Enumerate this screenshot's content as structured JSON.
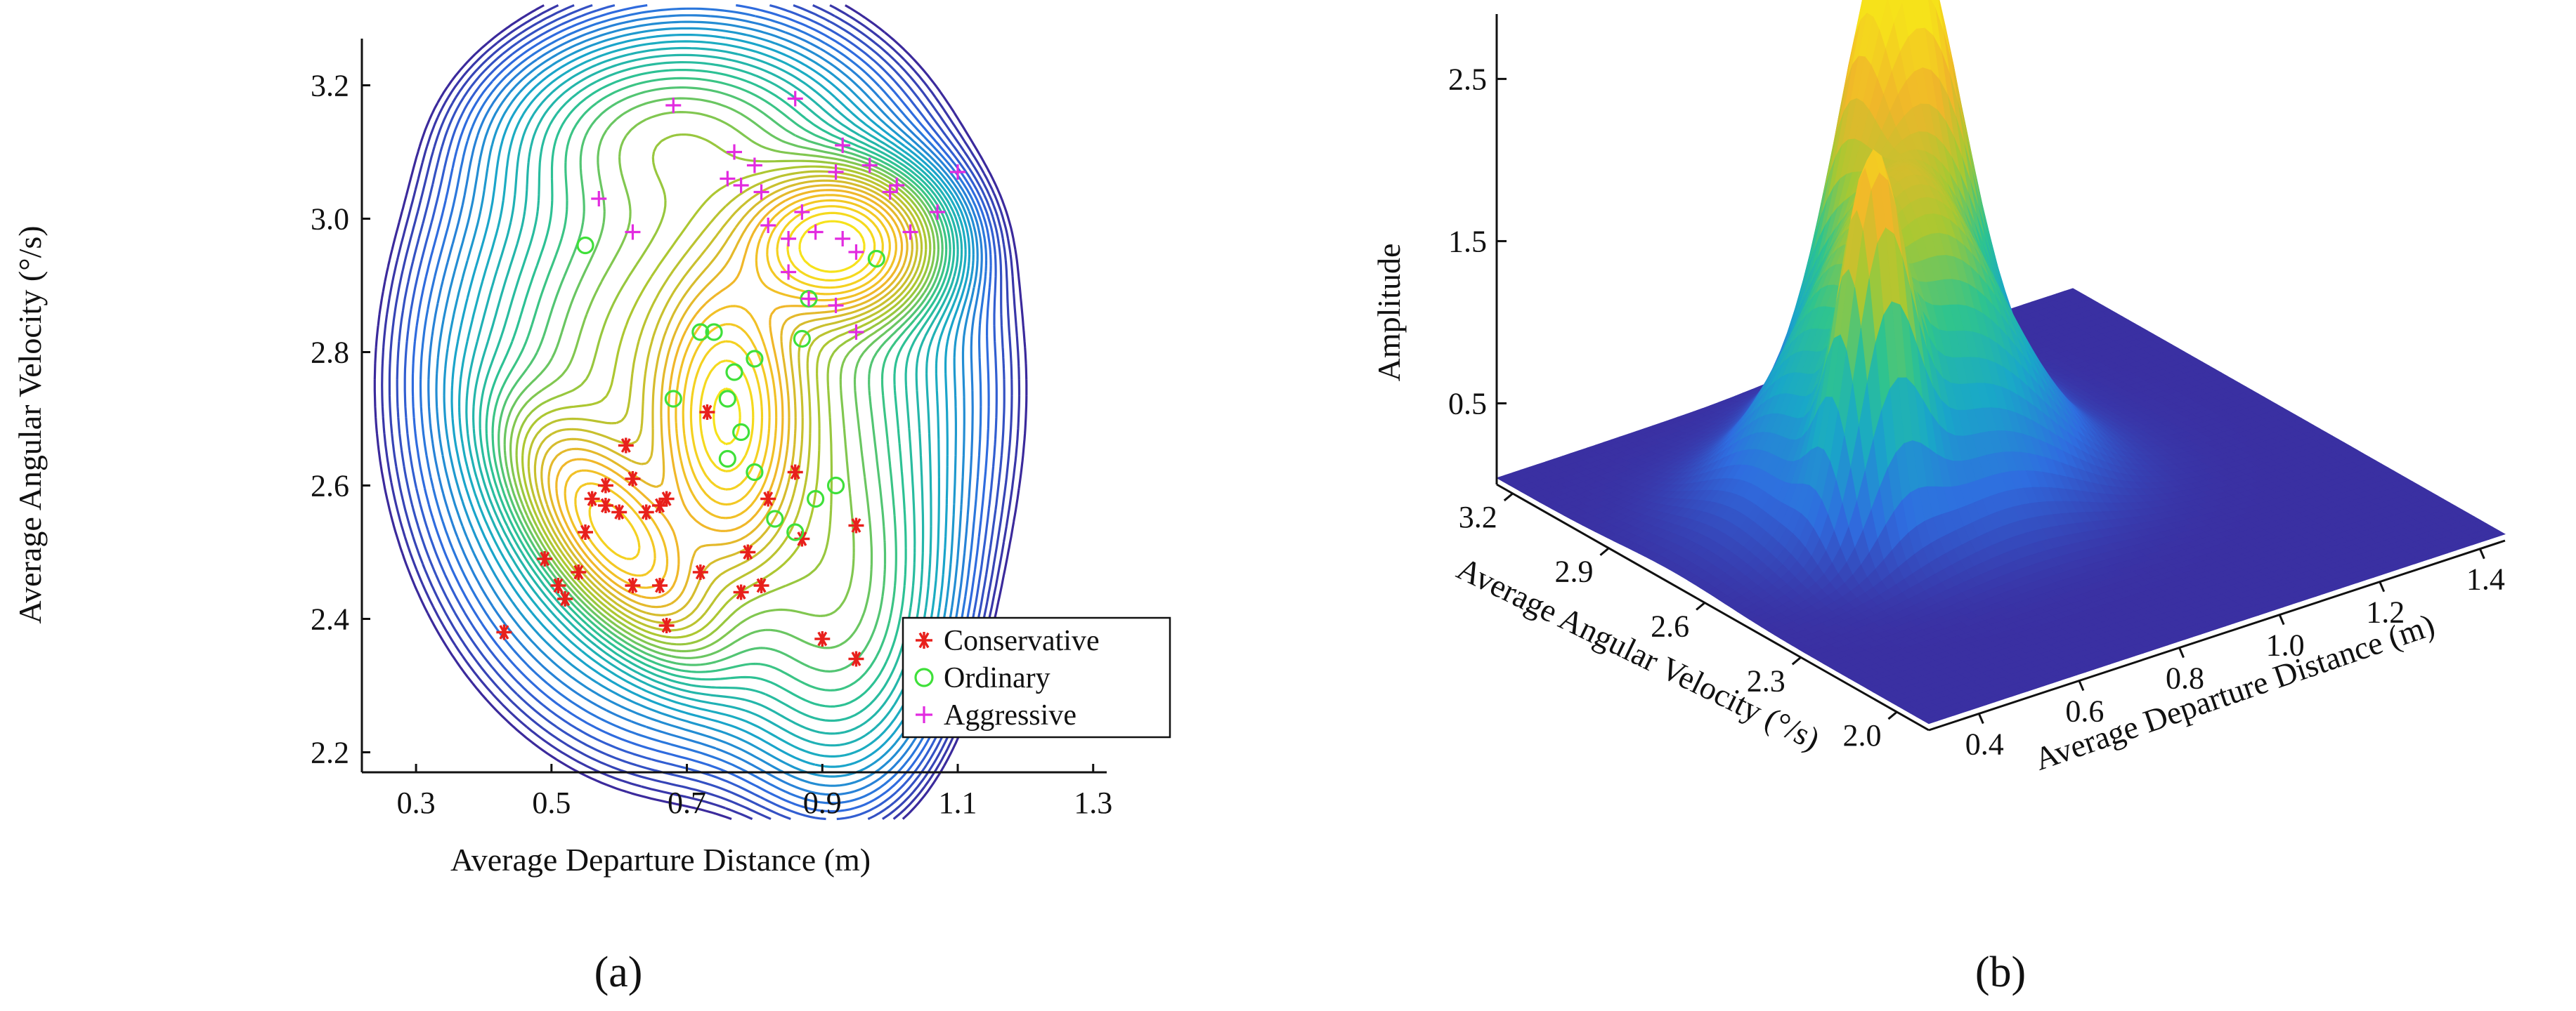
{
  "chart_data": [
    {
      "panel": "(a)",
      "type": "contour",
      "xlabel": "Average  Departure Distance (m)",
      "ylabel": "Average Angular Velocity (°/s)",
      "xlim": [
        0.22,
        1.32
      ],
      "ylim": [
        2.17,
        3.27
      ],
      "xticks": [
        "0.3",
        "0.5",
        "0.7",
        "0.9",
        "1.1",
        "1.3"
      ],
      "yticks": [
        "2.2",
        "2.4",
        "2.6",
        "2.8",
        "3.0",
        "3.2"
      ],
      "legend_position": "bottom-right",
      "density_peaks": [
        {
          "x": 0.59,
          "y": 2.53,
          "height": 1.8
        },
        {
          "x": 0.92,
          "y": 2.96,
          "height": 2.85
        },
        {
          "x": 0.76,
          "y": 2.7,
          "height": 2.0
        }
      ],
      "series": [
        {
          "name": "Conservative",
          "marker": "asterisk",
          "color": "#e8201c",
          "points": [
            [
              0.43,
              2.38
            ],
            [
              0.49,
              2.49
            ],
            [
              0.51,
              2.45
            ],
            [
              0.52,
              2.43
            ],
            [
              0.54,
              2.47
            ],
            [
              0.55,
              2.53
            ],
            [
              0.56,
              2.58
            ],
            [
              0.58,
              2.6
            ],
            [
              0.58,
              2.57
            ],
            [
              0.6,
              2.56
            ],
            [
              0.61,
              2.66
            ],
            [
              0.62,
              2.61
            ],
            [
              0.62,
              2.45
            ],
            [
              0.64,
              2.56
            ],
            [
              0.66,
              2.57
            ],
            [
              0.67,
              2.58
            ],
            [
              0.66,
              2.45
            ],
            [
              0.67,
              2.39
            ],
            [
              0.72,
              2.47
            ],
            [
              0.73,
              2.71
            ],
            [
              0.78,
              2.44
            ],
            [
              0.79,
              2.5
            ],
            [
              0.81,
              2.45
            ],
            [
              0.82,
              2.58
            ],
            [
              0.86,
              2.62
            ],
            [
              0.87,
              2.52
            ],
            [
              0.9,
              2.37
            ],
            [
              0.95,
              2.54
            ],
            [
              0.95,
              2.34
            ]
          ]
        },
        {
          "name": "Ordinary",
          "marker": "circle",
          "color": "#3fe03a",
          "points": [
            [
              0.55,
              2.96
            ],
            [
              0.68,
              2.73
            ],
            [
              0.72,
              2.83
            ],
            [
              0.74,
              2.83
            ],
            [
              0.76,
              2.73
            ],
            [
              0.77,
              2.77
            ],
            [
              0.78,
              2.68
            ],
            [
              0.8,
              2.79
            ],
            [
              0.76,
              2.64
            ],
            [
              0.8,
              2.62
            ],
            [
              0.83,
              2.55
            ],
            [
              0.86,
              2.53
            ],
            [
              0.87,
              2.82
            ],
            [
              0.89,
              2.58
            ],
            [
              0.92,
              2.6
            ],
            [
              0.98,
              2.94
            ],
            [
              0.88,
              2.88
            ]
          ]
        },
        {
          "name": "Aggressive",
          "marker": "plus",
          "color": "#e22be0",
          "points": [
            [
              0.57,
              3.03
            ],
            [
              0.62,
              2.98
            ],
            [
              0.68,
              3.17
            ],
            [
              0.76,
              3.06
            ],
            [
              0.77,
              3.1
            ],
            [
              0.78,
              3.05
            ],
            [
              0.8,
              3.08
            ],
            [
              0.81,
              3.04
            ],
            [
              0.82,
              2.99
            ],
            [
              0.85,
              2.97
            ],
            [
              0.86,
              3.18
            ],
            [
              0.87,
              3.01
            ],
            [
              0.89,
              2.98
            ],
            [
              0.92,
              3.07
            ],
            [
              0.93,
              3.11
            ],
            [
              0.93,
              2.97
            ],
            [
              0.95,
              2.95
            ],
            [
              0.97,
              3.08
            ],
            [
              1.0,
              3.04
            ],
            [
              1.01,
              3.05
            ],
            [
              1.07,
              3.01
            ],
            [
              1.1,
              3.07
            ],
            [
              1.03,
              2.98
            ],
            [
              0.95,
              2.83
            ],
            [
              0.88,
              2.88
            ],
            [
              0.92,
              2.87
            ],
            [
              0.85,
              2.92
            ]
          ]
        }
      ]
    },
    {
      "panel": "(b)",
      "type": "surface",
      "xlabel": "Average  Departure Distance (m)",
      "ylabel": "Average Angular Velocity (°/s)",
      "zlabel": "Amplitude",
      "xticks": [
        "0.4",
        "0.6",
        "0.8",
        "1.0",
        "1.2",
        "1.4"
      ],
      "yticks": [
        "2.0",
        "2.3",
        "2.6",
        "2.9",
        "3.2"
      ],
      "zticks": [
        "0.5",
        "1.5",
        "2.5"
      ],
      "xlim": [
        0.3,
        1.45
      ],
      "ylim": [
        1.9,
        3.25
      ],
      "zlim": [
        0,
        2.9
      ],
      "colormap": [
        "#3b2a9c",
        "#2f6de0",
        "#19a8c8",
        "#2fc48e",
        "#a8c832",
        "#f0b62a",
        "#f6e21a"
      ],
      "peaks": [
        {
          "x": 0.92,
          "y": 2.96,
          "height": 2.85,
          "width": 0.18
        },
        {
          "x": 0.76,
          "y": 2.7,
          "height": 2.0,
          "width": 0.3
        },
        {
          "x": 0.59,
          "y": 2.53,
          "height": 1.8,
          "width": 0.1
        }
      ]
    }
  ],
  "captions": {
    "a": "(a)",
    "b": "(b)"
  }
}
